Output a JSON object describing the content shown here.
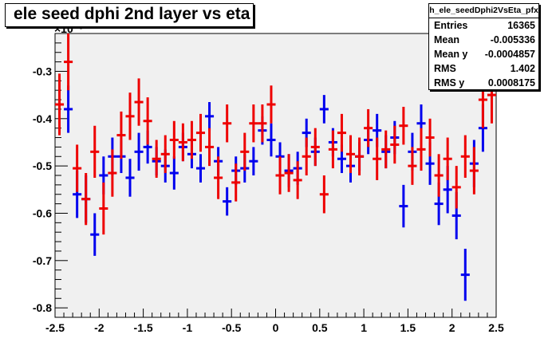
{
  "title": "ele seed dphi 2nd layer vs eta",
  "stats": {
    "name": "h_ele_seedDphi2VsEta_pfx",
    "rows": [
      {
        "label": "Entries",
        "value": "16365"
      },
      {
        "label": "Mean",
        "value": "-0.005336"
      },
      {
        "label": "Mean y",
        "value": "-0.0004857"
      },
      {
        "label": "RMS",
        "value": "1.402"
      },
      {
        "label": "RMS y",
        "value": "0.0008175"
      }
    ]
  },
  "chart_data": {
    "type": "scatter",
    "title": "ele seed dphi 2nd layer vs eta",
    "y_multiplier": "×10⁻³",
    "xlim": [
      -2.5,
      2.5
    ],
    "ylim": [
      -0.82,
      -0.22
    ],
    "x_ticks": [
      -2.5,
      -2,
      -1.5,
      -1,
      -0.5,
      0,
      0.5,
      1,
      1.5,
      2,
      2.5
    ],
    "x_tick_labels": [
      "-2.5",
      "-2",
      "-1.5",
      "-1",
      "-0.5",
      "0",
      "0.5",
      "1",
      "1.5",
      "2",
      "2.5"
    ],
    "y_ticks": [
      -0.8,
      -0.7,
      -0.6,
      -0.5,
      -0.4,
      -0.3
    ],
    "y_tick_labels": [
      "-0.8",
      "-0.7",
      "-0.6",
      "-0.5",
      "-0.4",
      "-0.3"
    ],
    "x_half_width": 0.05,
    "grid": false,
    "colors": {
      "frame_bg": "#f0f0f0",
      "blue": "#0000ee",
      "red": "#ee0000"
    },
    "series": [
      {
        "color": "blue",
        "x": [
          -2.35,
          -2.25,
          -2.15,
          -2.05,
          -1.95,
          -1.85,
          -1.75,
          -1.65,
          -1.55,
          -1.45,
          -1.35,
          -1.25,
          -1.15,
          -1.05,
          -0.95,
          -0.85,
          -0.75,
          -0.65,
          -0.55,
          -0.45,
          -0.35,
          -0.25,
          -0.15,
          -0.05,
          0.05,
          0.15,
          0.25,
          0.35,
          0.45,
          0.55,
          0.65,
          0.75,
          0.85,
          0.95,
          1.05,
          1.15,
          1.25,
          1.35,
          1.45,
          1.55,
          1.65,
          1.75,
          1.85,
          1.95,
          2.05,
          2.15,
          2.25,
          2.35
        ],
        "y": [
          -0.38,
          -0.56,
          -0.57,
          -0.645,
          -0.52,
          -0.48,
          -0.48,
          -0.525,
          -0.47,
          -0.46,
          -0.49,
          -0.5,
          -0.515,
          -0.46,
          -0.475,
          -0.505,
          -0.395,
          -0.49,
          -0.575,
          -0.51,
          -0.505,
          -0.49,
          -0.425,
          -0.445,
          -0.48,
          -0.51,
          -0.505,
          -0.43,
          -0.47,
          -0.38,
          -0.45,
          -0.485,
          -0.5,
          -0.48,
          -0.445,
          -0.425,
          -0.47,
          -0.44,
          -0.585,
          -0.47,
          -0.41,
          -0.495,
          -0.58,
          -0.55,
          -0.605,
          -0.73,
          -0.495,
          -0.42
        ],
        "err": [
          0.05,
          0.05,
          0.05,
          0.045,
          0.04,
          0.04,
          0.035,
          0.04,
          0.04,
          0.035,
          0.03,
          0.035,
          0.035,
          0.03,
          0.03,
          0.03,
          0.03,
          0.03,
          0.03,
          0.03,
          0.03,
          0.03,
          0.03,
          0.035,
          0.03,
          0.035,
          0.035,
          0.03,
          0.03,
          0.03,
          0.03,
          0.03,
          0.035,
          0.03,
          0.03,
          0.035,
          0.035,
          0.035,
          0.045,
          0.04,
          0.04,
          0.045,
          0.045,
          0.05,
          0.05,
          0.055,
          0.05,
          0.05
        ]
      },
      {
        "color": "red",
        "x": [
          -2.45,
          -2.35,
          -2.25,
          -2.15,
          -2.05,
          -1.95,
          -1.85,
          -1.75,
          -1.65,
          -1.55,
          -1.45,
          -1.35,
          -1.25,
          -1.15,
          -1.05,
          -0.95,
          -0.85,
          -0.75,
          -0.65,
          -0.55,
          -0.45,
          -0.35,
          -0.25,
          -0.15,
          -0.05,
          0.05,
          0.15,
          0.25,
          0.35,
          0.45,
          0.55,
          0.65,
          0.75,
          0.85,
          0.95,
          1.05,
          1.15,
          1.25,
          1.35,
          1.45,
          1.55,
          1.65,
          1.75,
          1.85,
          1.95,
          2.05,
          2.15,
          2.25,
          2.35,
          2.45
        ],
        "y": [
          -0.37,
          -0.28,
          -0.505,
          -0.57,
          -0.47,
          -0.59,
          -0.515,
          -0.435,
          -0.395,
          -0.365,
          -0.405,
          -0.485,
          -0.475,
          -0.445,
          -0.45,
          -0.445,
          -0.43,
          -0.46,
          -0.525,
          -0.41,
          -0.535,
          -0.47,
          -0.41,
          -0.41,
          -0.37,
          -0.52,
          -0.515,
          -0.53,
          -0.48,
          -0.46,
          -0.56,
          -0.465,
          -0.43,
          -0.475,
          -0.48,
          -0.42,
          -0.485,
          -0.465,
          -0.455,
          -0.415,
          -0.5,
          -0.465,
          -0.44,
          -0.52,
          -0.485,
          -0.545,
          -0.48,
          -0.51,
          -0.36,
          -0.35
        ],
        "err": [
          0.065,
          0.06,
          0.05,
          0.055,
          0.055,
          0.055,
          0.05,
          0.05,
          0.05,
          0.05,
          0.05,
          0.04,
          0.04,
          0.04,
          0.04,
          0.04,
          0.04,
          0.04,
          0.045,
          0.04,
          0.04,
          0.04,
          0.04,
          0.04,
          0.04,
          0.04,
          0.04,
          0.04,
          0.04,
          0.04,
          0.04,
          0.04,
          0.04,
          0.04,
          0.04,
          0.04,
          0.045,
          0.04,
          0.04,
          0.04,
          0.04,
          0.045,
          0.04,
          0.045,
          0.045,
          0.045,
          0.045,
          0.05,
          0.06,
          0.06
        ]
      }
    ]
  }
}
